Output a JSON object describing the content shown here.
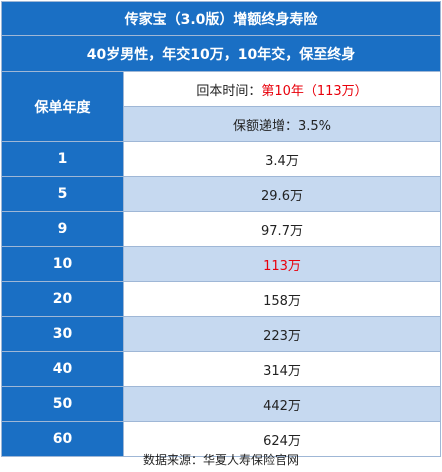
{
  "title": "传家宝（3.0版）增额终身寿险",
  "subtitle": "40岁男性，年交10万，10年交，保至终身",
  "year_header": "保单年度",
  "info": {
    "payback_label": "回本时间：",
    "payback_value": "第10年（113万）",
    "increase_text": "保额递增：3.5%"
  },
  "rows": [
    {
      "year": "1",
      "value": "3.4万"
    },
    {
      "year": "5",
      "value": "29.6万"
    },
    {
      "year": "9",
      "value": "97.7万"
    },
    {
      "year": "10",
      "value": "113万"
    },
    {
      "year": "20",
      "value": "158万"
    },
    {
      "year": "30",
      "value": "223万"
    },
    {
      "year": "40",
      "value": "314万"
    },
    {
      "year": "50",
      "value": "442万"
    },
    {
      "year": "60",
      "value": "624万"
    }
  ],
  "source": "数据来源：华夏人寿保险官网",
  "colors": {
    "header_blue": "#1a6fc4",
    "row_alt": "#c6d9f0",
    "highlight_red": "#e8000b"
  }
}
